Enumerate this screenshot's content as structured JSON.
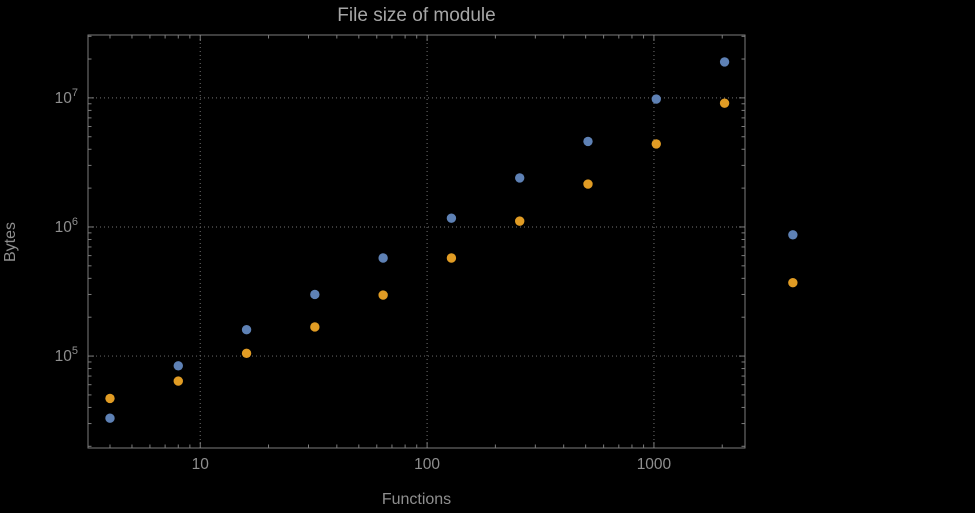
{
  "chart_data": {
    "type": "scatter",
    "title": "File size of module",
    "xlabel": "Functions",
    "ylabel": "Bytes",
    "x_scale": "log",
    "y_scale": "log",
    "grid": true,
    "legend": "none",
    "background": "#000000",
    "x_ticks": [
      10,
      100,
      1000
    ],
    "x_tick_labels": [
      "10",
      "100",
      "1000"
    ],
    "y_ticks": [
      100000,
      1000000,
      10000000
    ],
    "y_tick_labels": [
      {
        "base": "10",
        "exp": "5"
      },
      {
        "base": "10",
        "exp": "6"
      },
      {
        "base": "10",
        "exp": "7"
      }
    ],
    "xlim": [
      3.2,
      2520
    ],
    "ylim": [
      19400,
      30700000
    ],
    "x": [
      4,
      8,
      16,
      32,
      64,
      128,
      256,
      512,
      1024,
      2048,
      4096
    ],
    "series": [
      {
        "name": "series-1",
        "color": "#5e81b5",
        "values": [
          33000,
          84000,
          160000,
          300000,
          575000,
          1170000,
          2400000,
          4600000,
          9800000,
          19000000,
          870000
        ]
      },
      {
        "name": "series-2",
        "color": "#e19c24",
        "values": [
          47000,
          64000,
          105000,
          168000,
          297000,
          575000,
          1110000,
          2150000,
          4400000,
          9100000,
          370000
        ]
      }
    ],
    "colors": {
      "grid": "#5e5e5e",
      "frame": "#7d7d7d",
      "tick_label": "#8f8f8f",
      "title": "#a6a6a6"
    }
  }
}
